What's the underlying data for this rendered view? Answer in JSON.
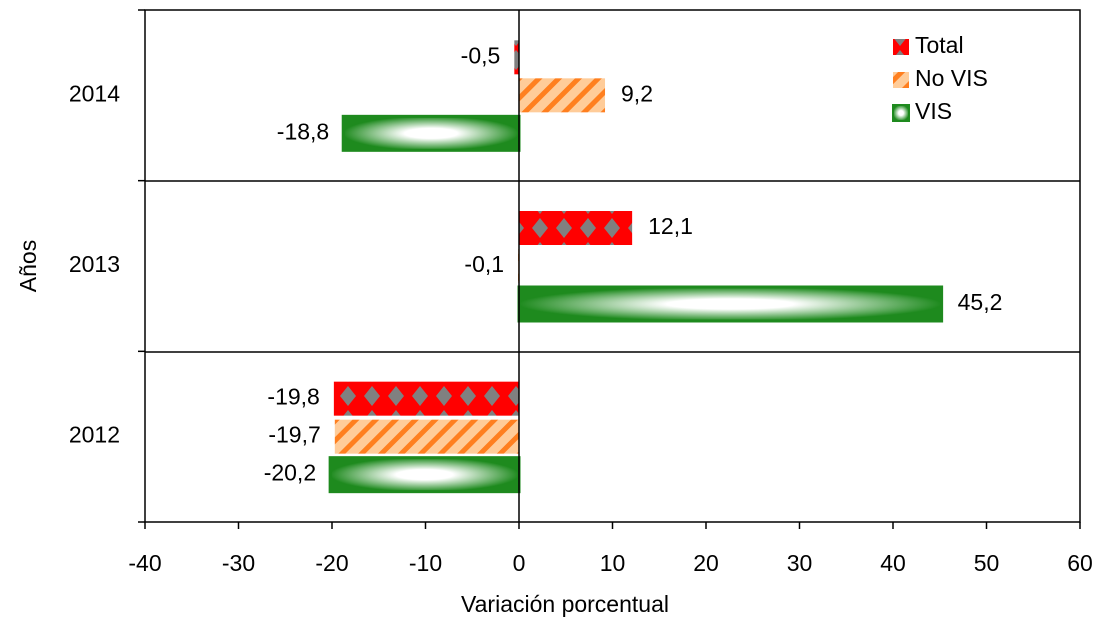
{
  "chart_data": {
    "type": "barh",
    "categories": [
      "2014",
      "2013",
      "2012"
    ],
    "series": [
      {
        "name": "Total",
        "color": "#ff0000",
        "values": [
          -0.5,
          12.1,
          -19.8
        ],
        "value_labels": [
          "-0,5",
          "12,1",
          "-19,8"
        ]
      },
      {
        "name": "No VIS",
        "color": "#ff7f1f",
        "values": [
          9.2,
          -0.1,
          -19.7
        ],
        "value_labels": [
          "9,2",
          "-0,1",
          "-19,7"
        ]
      },
      {
        "name": "VIS",
        "color": "#1e8a1e",
        "values": [
          -18.8,
          45.2,
          -20.2
        ],
        "value_labels": [
          "-18,8",
          "45,2",
          "-20,2"
        ]
      }
    ],
    "xlim": [
      -40,
      60
    ],
    "xticks": [
      -40,
      -30,
      -20,
      -10,
      0,
      10,
      20,
      30,
      40,
      50,
      60
    ],
    "xlabel": "Variación porcentual",
    "ylabel": "Años",
    "legend": "upper-right"
  }
}
